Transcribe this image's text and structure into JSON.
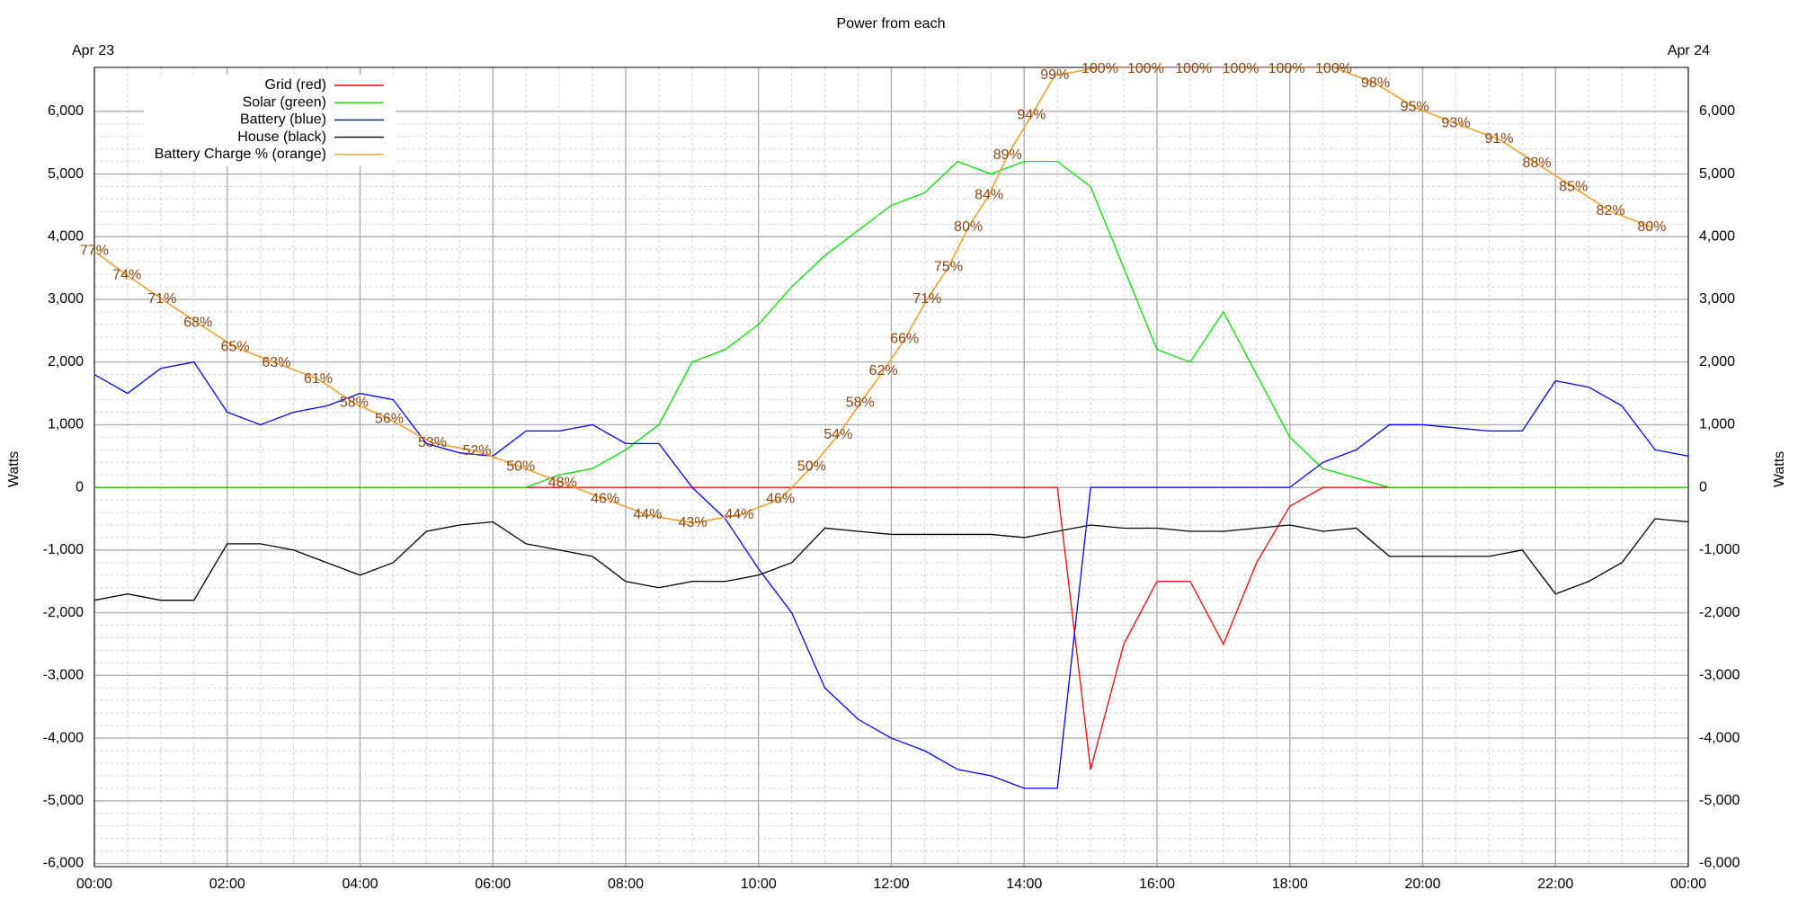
{
  "chart_data": {
    "type": "line",
    "title": "Power from each",
    "ylabel": "Watts",
    "y2label": "Watts",
    "annotations": [
      "Apr 23",
      "Apr 24"
    ],
    "legend": "top-left",
    "grid": true,
    "minor_grid": true,
    "xlim": [
      0,
      24
    ],
    "xticks": [
      {
        "value": 0,
        "label": "00:00"
      },
      {
        "value": 2,
        "label": "02:00"
      },
      {
        "value": 4,
        "label": "04:00"
      },
      {
        "value": 6,
        "label": "06:00"
      },
      {
        "value": 8,
        "label": "08:00"
      },
      {
        "value": 10,
        "label": "10:00"
      },
      {
        "value": 12,
        "label": "12:00"
      },
      {
        "value": 14,
        "label": "14:00"
      },
      {
        "value": 16,
        "label": "16:00"
      },
      {
        "value": 18,
        "label": "18:00"
      },
      {
        "value": 20,
        "label": "20:00"
      },
      {
        "value": 22,
        "label": "22:00"
      },
      {
        "value": 24,
        "label": "00:00"
      }
    ],
    "ylim": [
      -6050,
      6700
    ],
    "yticks": [
      {
        "value": -6000,
        "label": "-6,000"
      },
      {
        "value": -5000,
        "label": "-5,000"
      },
      {
        "value": -4000,
        "label": "-4,000"
      },
      {
        "value": -3000,
        "label": "-3,000"
      },
      {
        "value": -2000,
        "label": "-2,000"
      },
      {
        "value": -1000,
        "label": "-1,000"
      },
      0,
      {
        "value": 1000,
        "label": "1,000"
      },
      {
        "value": 2000,
        "label": "2,000"
      },
      {
        "value": 3000,
        "label": "3,000"
      },
      {
        "value": 4000,
        "label": "4,000"
      },
      {
        "value": 5000,
        "label": "5,000"
      },
      {
        "value": 6000,
        "label": "6,000"
      }
    ],
    "y2lim": [
      0,
      100
    ],
    "x": [
      0,
      0.5,
      1,
      1.5,
      2,
      2.5,
      3,
      3.5,
      4,
      4.5,
      5,
      5.5,
      6,
      6.5,
      7,
      7.5,
      8,
      8.5,
      9,
      9.5,
      10,
      10.5,
      11,
      11.5,
      12,
      12.5,
      13,
      13.5,
      14,
      14.5,
      15,
      15.5,
      16,
      16.5,
      17,
      17.5,
      18,
      18.5,
      19,
      19.5,
      20,
      20.5,
      21,
      21.5,
      22,
      22.5,
      23,
      23.5,
      24
    ],
    "series": [
      {
        "name": "Grid (red)",
        "color": "#ff0000",
        "values": [
          0,
          0,
          0,
          0,
          0,
          0,
          0,
          0,
          0,
          0,
          0,
          0,
          0,
          0,
          0,
          0,
          0,
          0,
          0,
          0,
          0,
          0,
          0,
          0,
          0,
          0,
          0,
          0,
          0,
          0,
          -4500,
          -2500,
          -1500,
          -1500,
          -2500,
          -1200,
          -300,
          0,
          0,
          0,
          0,
          0,
          0,
          0,
          0,
          0,
          0,
          0,
          0
        ]
      },
      {
        "name": "Solar (green)",
        "color": "#00e000",
        "values": [
          0,
          0,
          0,
          0,
          0,
          0,
          0,
          0,
          0,
          0,
          0,
          0,
          0,
          0,
          200,
          300,
          600,
          1000,
          2000,
          2200,
          2600,
          3200,
          3700,
          4100,
          4500,
          4700,
          5200,
          5000,
          5200,
          5200,
          4800,
          3500,
          2200,
          2000,
          2800,
          1800,
          800,
          300,
          150,
          0,
          0,
          0,
          0,
          0,
          0,
          0,
          0,
          0,
          0
        ]
      },
      {
        "name": "Battery (blue)",
        "color": "#0000ff",
        "values": [
          1800,
          1500,
          1900,
          2000,
          1200,
          1000,
          1200,
          1300,
          1500,
          1400,
          700,
          550,
          500,
          900,
          900,
          1000,
          700,
          700,
          0,
          -500,
          -1300,
          -2000,
          -3200,
          -3700,
          -4000,
          -4200,
          -4500,
          -4600,
          -4800,
          -4800,
          0,
          0,
          0,
          0,
          0,
          0,
          0,
          400,
          600,
          1000,
          1000,
          950,
          900,
          900,
          1700,
          1600,
          1300,
          600,
          500
        ]
      },
      {
        "name": "House (black)",
        "color": "#000000",
        "values": [
          -1800,
          -1700,
          -1800,
          -1800,
          -900,
          -900,
          -1000,
          -1200,
          -1400,
          -1200,
          -700,
          -600,
          -550,
          -900,
          -1000,
          -1100,
          -1500,
          -1600,
          -1500,
          -1500,
          -1400,
          -1200,
          -650,
          -700,
          -750,
          -750,
          -750,
          -750,
          -800,
          -700,
          -600,
          -650,
          -650,
          -700,
          -700,
          -650,
          -600,
          -700,
          -650,
          -1100,
          -1100,
          -1100,
          -1100,
          -1000,
          -1700,
          -1500,
          -1200,
          -500,
          -550
        ]
      },
      {
        "name": "Battery Charge % (orange)",
        "color": "#f0a030",
        "label_color": "#8b4513",
        "axis": "y2",
        "x": [
          0,
          0.49,
          1.02,
          1.56,
          2.12,
          2.74,
          3.37,
          3.91,
          4.44,
          5.09,
          5.76,
          6.42,
          7.05,
          7.69,
          8.33,
          9.01,
          9.71,
          10.33,
          10.8,
          11.2,
          11.53,
          11.88,
          12.2,
          12.54,
          12.86,
          13.16,
          13.47,
          13.75,
          14.11,
          14.46,
          15.14,
          15.83,
          16.55,
          17.26,
          17.95,
          18.66,
          19.29,
          19.88,
          20.5,
          21.15,
          21.72,
          22.27,
          22.83,
          23.45
        ],
        "values": [
          77,
          74,
          71,
          68,
          65,
          63,
          61,
          58,
          56,
          53,
          52,
          50,
          48,
          46,
          44,
          43,
          44,
          46,
          50,
          54,
          58,
          62,
          66,
          71,
          75,
          80,
          84,
          89,
          94,
          99,
          100,
          100,
          100,
          100,
          100,
          100,
          98,
          95,
          93,
          91,
          88,
          85,
          82,
          80
        ],
        "value_labels": [
          "77%",
          "74%",
          "71%",
          "68%",
          "65%",
          "63%",
          "61%",
          "58%",
          "56%",
          "53%",
          "52%",
          "50%",
          "48%",
          "46%",
          "44%",
          "43%",
          "44%",
          "46%",
          "50%",
          "54%",
          "58%",
          "62%",
          "66%",
          "71%",
          "75%",
          "80%",
          "84%",
          "89%",
          "94%",
          "99%",
          "100%",
          "100%",
          "100%",
          "100%",
          "100%",
          "100%",
          "98%",
          "95%",
          "93%",
          "91%",
          "88%",
          "85%",
          "82%",
          "80%"
        ]
      }
    ]
  }
}
